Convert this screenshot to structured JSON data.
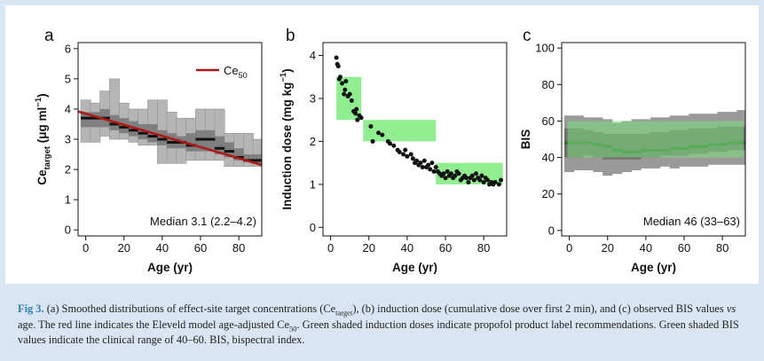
{
  "caption": {
    "label": "Fig 3.",
    "t1": " (a) Smoothed distributions of effect-site target concentrations (Ce",
    "t1_sub": "target",
    "t2": "), (b) induction dose (cumulative dose over first 2 min), and (c) observed BIS values ",
    "t2_italic": "vs",
    "t3": " age. The red line indicates the Eleveld model age-adjusted Ce",
    "t3_sub": "50",
    "t4": ". Green shaded induction doses indicate propofol product label recommendations. Green shaded BIS values indicate the clinical range of 40–60. BIS, bispectral index."
  },
  "chart_data": [
    {
      "panel": "a",
      "type": "area",
      "ylabel_main": "Ce",
      "ylabel_sub": "target",
      "ylabel_unit": " (μg ml",
      "ylabel_sup": "−1",
      "ylabel_close": ")",
      "xlabel": "Age (yr)",
      "xlim": [
        -4,
        92
      ],
      "ylim": [
        -0.2,
        6.2
      ],
      "xticks": [
        0,
        20,
        40,
        60,
        80
      ],
      "yticks": [
        0,
        1,
        2,
        3,
        4,
        5,
        6
      ],
      "legend": {
        "label": "Ce",
        "sub": "50",
        "position": "top-right",
        "color": "#b01818"
      },
      "annotation": "Median 3.1 (2.2–4.2)",
      "distribution": {
        "x": [
          0,
          5,
          10,
          15,
          20,
          25,
          30,
          35,
          40,
          45,
          50,
          55,
          60,
          65,
          70,
          75,
          80,
          85,
          90
        ],
        "p5": [
          2.9,
          2.9,
          3.1,
          3.0,
          3.0,
          2.9,
          2.8,
          2.8,
          2.2,
          2.2,
          2.2,
          2.3,
          2.3,
          2.3,
          2.3,
          2.1,
          2.1,
          2.1,
          2.1
        ],
        "p25": [
          3.4,
          3.4,
          3.4,
          3.3,
          3.2,
          3.1,
          3.0,
          2.9,
          2.8,
          2.7,
          2.7,
          2.6,
          2.6,
          2.6,
          2.5,
          2.4,
          2.3,
          2.3,
          2.2
        ],
        "median": [
          3.7,
          3.7,
          3.7,
          3.5,
          3.4,
          3.3,
          3.2,
          3.1,
          3.0,
          2.9,
          2.9,
          2.8,
          3.0,
          3.0,
          2.7,
          2.6,
          2.4,
          2.3,
          2.3
        ],
        "p75": [
          3.9,
          3.9,
          4.0,
          3.8,
          3.7,
          3.6,
          3.5,
          3.5,
          3.3,
          3.2,
          3.1,
          3.2,
          3.3,
          3.3,
          3.1,
          2.9,
          2.7,
          2.5,
          2.5
        ],
        "p95": [
          4.3,
          4.2,
          4.6,
          5.0,
          4.2,
          4.0,
          4.0,
          4.3,
          4.3,
          3.9,
          3.7,
          3.7,
          4.0,
          4.0,
          4.0,
          3.2,
          3.2,
          3.2,
          3.0
        ]
      },
      "ce50_line": {
        "x": [
          -4,
          92
        ],
        "y": [
          3.92,
          2.15
        ]
      },
      "colors": {
        "outer": "#b5b5b5",
        "inner": "#7f7f7f",
        "median": "#111111",
        "grid": "#8a8a8a"
      }
    },
    {
      "panel": "b",
      "type": "scatter",
      "ylabel_main": "Induction dose (mg kg",
      "ylabel_sup": "−1",
      "ylabel_close": ")",
      "xlabel": "Age (yr)",
      "xlim": [
        -4,
        92
      ],
      "ylim": [
        -0.2,
        4.3
      ],
      "xticks": [
        0,
        20,
        40,
        60,
        80
      ],
      "yticks": [
        0,
        1,
        2,
        3,
        4
      ],
      "shaded_ranges": [
        {
          "x0": 3,
          "x1": 16,
          "y0": 2.5,
          "y1": 3.5
        },
        {
          "x0": 17,
          "x1": 55,
          "y0": 2.0,
          "y1": 2.5
        },
        {
          "x0": 55,
          "x1": 90,
          "y0": 1.0,
          "y1": 1.5
        }
      ],
      "points": [
        [
          3,
          3.95
        ],
        [
          3.5,
          3.8
        ],
        [
          4,
          3.75
        ],
        [
          4.5,
          3.45
        ],
        [
          5,
          3.5
        ],
        [
          6,
          3.35
        ],
        [
          7,
          3.1
        ],
        [
          7.5,
          3.2
        ],
        [
          8,
          3.4
        ],
        [
          9,
          3.05
        ],
        [
          10,
          3.1
        ],
        [
          11,
          2.95
        ],
        [
          12,
          2.7
        ],
        [
          13,
          2.65
        ],
        [
          13.5,
          2.75
        ],
        [
          14,
          2.5
        ],
        [
          15,
          2.6
        ],
        [
          16,
          2.55
        ],
        [
          21,
          2.35
        ],
        [
          22,
          2.0
        ],
        [
          25,
          2.2
        ],
        [
          27,
          2.15
        ],
        [
          30,
          2.0
        ],
        [
          31,
          1.95
        ],
        [
          33,
          1.9
        ],
        [
          35,
          1.8
        ],
        [
          36,
          1.75
        ],
        [
          38,
          1.7
        ],
        [
          39,
          1.8
        ],
        [
          40,
          1.65
        ],
        [
          42,
          1.7
        ],
        [
          43,
          1.6
        ],
        [
          44,
          1.5
        ],
        [
          45,
          1.55
        ],
        [
          46,
          1.45
        ],
        [
          47,
          1.5
        ],
        [
          48,
          1.4
        ],
        [
          49,
          1.55
        ],
        [
          50,
          1.4
        ],
        [
          51,
          1.45
        ],
        [
          52,
          1.35
        ],
        [
          53,
          1.5
        ],
        [
          54,
          1.3
        ],
        [
          55,
          1.4
        ],
        [
          56,
          1.3
        ],
        [
          57,
          1.25
        ],
        [
          58,
          1.2
        ],
        [
          59,
          1.25
        ],
        [
          60,
          1.15
        ],
        [
          61,
          1.3
        ],
        [
          62,
          1.2
        ],
        [
          63,
          1.25
        ],
        [
          64,
          1.15
        ],
        [
          65,
          1.2
        ],
        [
          66,
          1.3
        ],
        [
          67,
          1.25
        ],
        [
          68,
          1.1
        ],
        [
          69,
          1.15
        ],
        [
          70,
          1.2
        ],
        [
          71,
          1.15
        ],
        [
          72,
          1.05
        ],
        [
          73,
          1.15
        ],
        [
          74,
          1.2
        ],
        [
          75,
          1.1
        ],
        [
          76,
          1.25
        ],
        [
          77,
          1.15
        ],
        [
          78,
          1.1
        ],
        [
          79,
          1.2
        ],
        [
          80,
          1.05
        ],
        [
          81,
          1.15
        ],
        [
          82,
          1.1
        ],
        [
          83,
          1.0
        ],
        [
          84,
          1.05
        ],
        [
          85,
          1.0
        ],
        [
          86,
          1.05
        ],
        [
          88,
          1.0
        ],
        [
          89,
          1.1
        ]
      ],
      "colors": {
        "shade": "#90ee90",
        "point": "#111111"
      }
    },
    {
      "panel": "c",
      "type": "area",
      "ylabel_main": "BIS",
      "xlabel": "Age (yr)",
      "xlim": [
        -4,
        92
      ],
      "ylim": [
        -3,
        103
      ],
      "xticks": [
        0,
        20,
        40,
        60,
        80
      ],
      "yticks": [
        0,
        20,
        40,
        60,
        80,
        100
      ],
      "annotation": "Median 46 (33–63)",
      "clinical_range": {
        "y0": 40,
        "y1": 60
      },
      "distribution": {
        "x": [
          0,
          5,
          10,
          15,
          20,
          25,
          30,
          35,
          40,
          45,
          50,
          55,
          60,
          65,
          70,
          75,
          80,
          85,
          90
        ],
        "p5": [
          32,
          33,
          33,
          32,
          30,
          31,
          32,
          33,
          34,
          34,
          35,
          34,
          35,
          35,
          35,
          36,
          36,
          36,
          36
        ],
        "p25": [
          40,
          40,
          41,
          40,
          39,
          39,
          39,
          39,
          40,
          40,
          41,
          41,
          41,
          42,
          42,
          43,
          43,
          44,
          44
        ],
        "median": [
          48,
          48,
          48,
          47,
          46,
          44,
          43,
          43,
          44,
          44,
          44,
          45,
          45,
          46,
          46,
          47,
          47,
          48,
          48
        ],
        "p75": [
          56,
          56,
          55,
          54,
          53,
          53,
          53,
          53,
          53,
          54,
          54,
          55,
          55,
          56,
          56,
          56,
          57,
          57,
          57
        ],
        "p95": [
          63,
          63,
          62,
          62,
          61,
          59,
          60,
          61,
          61,
          62,
          62,
          63,
          63,
          64,
          64,
          64,
          65,
          65,
          66
        ]
      },
      "colors": {
        "outer": "#9a9a9a",
        "inner": "#6e6e6e",
        "median": "#2f6b2f",
        "shade": "#7be07b"
      }
    }
  ]
}
